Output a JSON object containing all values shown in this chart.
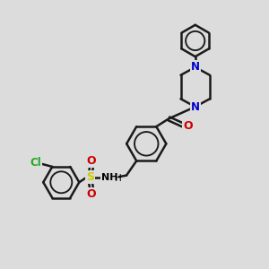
{
  "bg_color": "#dcdcdc",
  "bond_color": "#1a1a1a",
  "bond_width": 1.8,
  "figsize": [
    3.0,
    3.0
  ],
  "dpi": 100,
  "xlim": [
    0,
    10
  ],
  "ylim": [
    0,
    10
  ],
  "N_color": "#0000cc",
  "O_color": "#cc0000",
  "S_color": "#cccc00",
  "Cl_color": "#22aa22"
}
